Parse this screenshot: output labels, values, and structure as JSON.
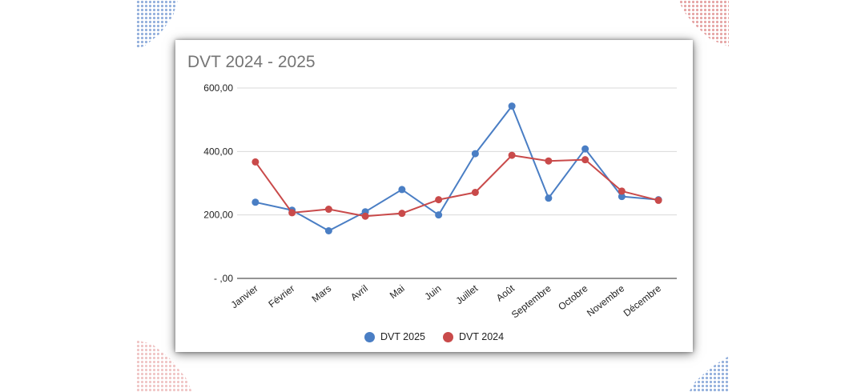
{
  "chart_data": {
    "type": "line",
    "title": "DVT 2024 - 2025",
    "xlabel": "",
    "ylabel": "",
    "categories": [
      "Janvier",
      "Février",
      "Mars",
      "Avril",
      "Mai",
      "Juin",
      "Juillet",
      "Août",
      "Septembre",
      "Octobre",
      "Novembre",
      "Décembre"
    ],
    "y_ticks": [
      0,
      200,
      400,
      600
    ],
    "y_tick_labels": [
      "- ,00",
      "200,00",
      "400,00",
      "600,00"
    ],
    "ylim": [
      0,
      600
    ],
    "grid": true,
    "legend_position": "bottom",
    "series": [
      {
        "name": "DVT 2025",
        "color": "#4a7ec4",
        "values": [
          240,
          215,
          150,
          210,
          280,
          200,
          393,
          543,
          253,
          408,
          258,
          248
        ]
      },
      {
        "name": "DVT 2024",
        "color": "#c94a4a",
        "values": [
          367,
          207,
          218,
          196,
          205,
          248,
          271,
          388,
          370,
          374,
          275,
          246
        ]
      }
    ]
  }
}
